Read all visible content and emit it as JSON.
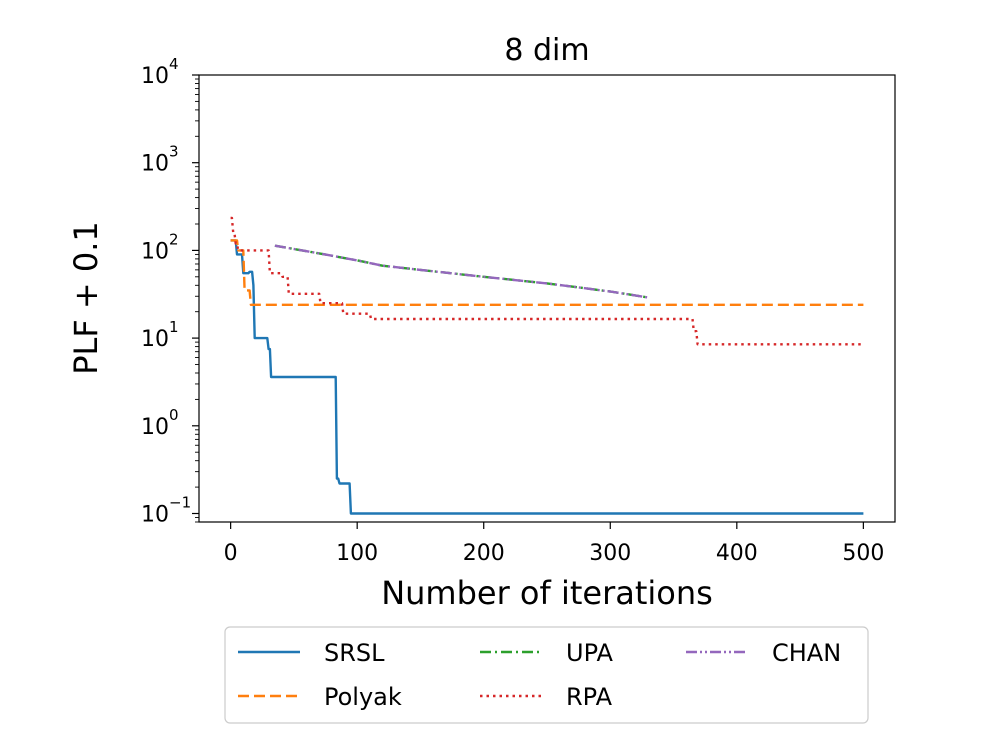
{
  "chart_data": {
    "type": "line",
    "title": "8 dim",
    "xlabel": "Number of iterations",
    "ylabel": "PLF + 0.1",
    "xlim": [
      -25,
      525
    ],
    "ylim": [
      0.08,
      10000
    ],
    "yscale": "log",
    "xticks": [
      0,
      100,
      200,
      300,
      400,
      500
    ],
    "xtick_labels": [
      "0",
      "100",
      "200",
      "300",
      "400",
      "500"
    ],
    "yticks": [
      0.1,
      1,
      10,
      100,
      1000,
      10000
    ],
    "ytick_labels": [
      {
        "base": "10",
        "exp": "−1"
      },
      {
        "base": "10",
        "exp": "0"
      },
      {
        "base": "10",
        "exp": "1"
      },
      {
        "base": "10",
        "exp": "2"
      },
      {
        "base": "10",
        "exp": "3"
      },
      {
        "base": "10",
        "exp": "4"
      }
    ],
    "grid": false,
    "legend_position": "bottom-outside",
    "legend_columns": 3,
    "series": [
      {
        "name": "SRSL",
        "color": "#1f77b4",
        "dash": "solid",
        "x": [
          0,
          4,
          5,
          9,
          10,
          14,
          15,
          17,
          18,
          19,
          20,
          29,
          30,
          31,
          32,
          83,
          84,
          85,
          86,
          94,
          95,
          500
        ],
        "y": [
          130,
          130,
          90,
          90,
          55,
          55,
          57,
          57,
          40,
          10,
          10,
          10,
          7.5,
          7.5,
          3.6,
          3.6,
          0.25,
          0.25,
          0.22,
          0.22,
          0.1,
          0.1
        ]
      },
      {
        "name": "Polyak",
        "color": "#ff7f0e",
        "dash": "dashed",
        "x": [
          0,
          5,
          6,
          10,
          11,
          15,
          16,
          500
        ],
        "y": [
          130,
          130,
          100,
          100,
          35,
          35,
          24,
          24
        ]
      },
      {
        "name": "UPA",
        "color": "#2ca02c",
        "dash": "dashdot",
        "x": [
          35,
          60,
          80,
          100,
          120,
          150,
          200,
          250,
          300,
          330
        ],
        "y": [
          113,
          98,
          87,
          77,
          67,
          60,
          50,
          42,
          34,
          29
        ]
      },
      {
        "name": "RPA",
        "color": "#d62728",
        "dash": "dotted",
        "x": [
          0,
          1,
          2,
          3,
          4,
          5,
          6,
          30,
          31,
          40,
          41,
          45,
          46,
          70,
          71,
          88,
          89,
          110,
          111,
          365,
          366,
          368,
          369,
          500
        ],
        "y": [
          235,
          235,
          160,
          160,
          120,
          120,
          100,
          100,
          55,
          55,
          50,
          50,
          32,
          32,
          25,
          25,
          19,
          19,
          16.5,
          16.5,
          12,
          12,
          8.5,
          8.5
        ]
      },
      {
        "name": "CHAN",
        "color": "#9467bd",
        "dash": "dashdotdot",
        "x": [
          35,
          60,
          80,
          100,
          120,
          150,
          200,
          250,
          300,
          330
        ],
        "y": [
          113,
          98,
          87,
          77,
          67,
          60,
          50,
          42,
          34,
          29
        ]
      }
    ]
  }
}
